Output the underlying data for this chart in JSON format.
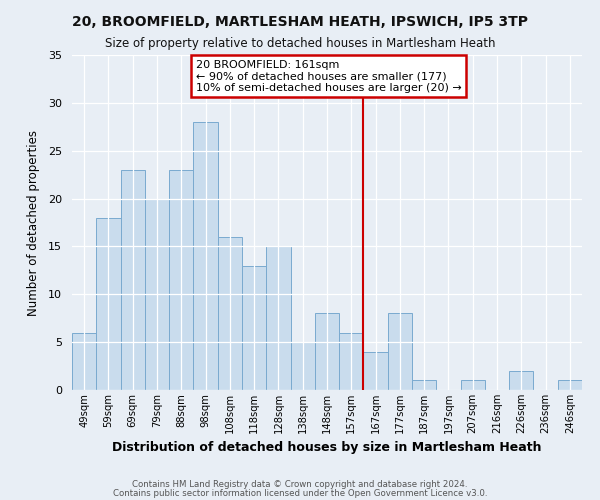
{
  "title": "20, BROOMFIELD, MARTLESHAM HEATH, IPSWICH, IP5 3TP",
  "subtitle": "Size of property relative to detached houses in Martlesham Heath",
  "xlabel": "Distribution of detached houses by size in Martlesham Heath",
  "ylabel": "Number of detached properties",
  "bar_labels": [
    "49sqm",
    "59sqm",
    "69sqm",
    "79sqm",
    "88sqm",
    "98sqm",
    "108sqm",
    "118sqm",
    "128sqm",
    "138sqm",
    "148sqm",
    "157sqm",
    "167sqm",
    "177sqm",
    "187sqm",
    "197sqm",
    "207sqm",
    "216sqm",
    "226sqm",
    "236sqm",
    "246sqm"
  ],
  "bar_values": [
    6,
    18,
    23,
    20,
    23,
    28,
    16,
    13,
    15,
    5,
    8,
    6,
    4,
    8,
    1,
    0,
    1,
    0,
    2,
    0,
    1
  ],
  "bar_color": "#c9dced",
  "bar_edge_color": "#7aaacf",
  "vline_color": "#cc0000",
  "annotation_title": "20 BROOMFIELD: 161sqm",
  "annotation_line1": "← 90% of detached houses are smaller (177)",
  "annotation_line2": "10% of semi-detached houses are larger (20) →",
  "annotation_box_color": "#ffffff",
  "annotation_box_edge": "#cc0000",
  "ylim": [
    0,
    35
  ],
  "yticks": [
    0,
    5,
    10,
    15,
    20,
    25,
    30,
    35
  ],
  "footer1": "Contains HM Land Registry data © Crown copyright and database right 2024.",
  "footer2": "Contains public sector information licensed under the Open Government Licence v3.0.",
  "bg_color": "#e8eef5"
}
